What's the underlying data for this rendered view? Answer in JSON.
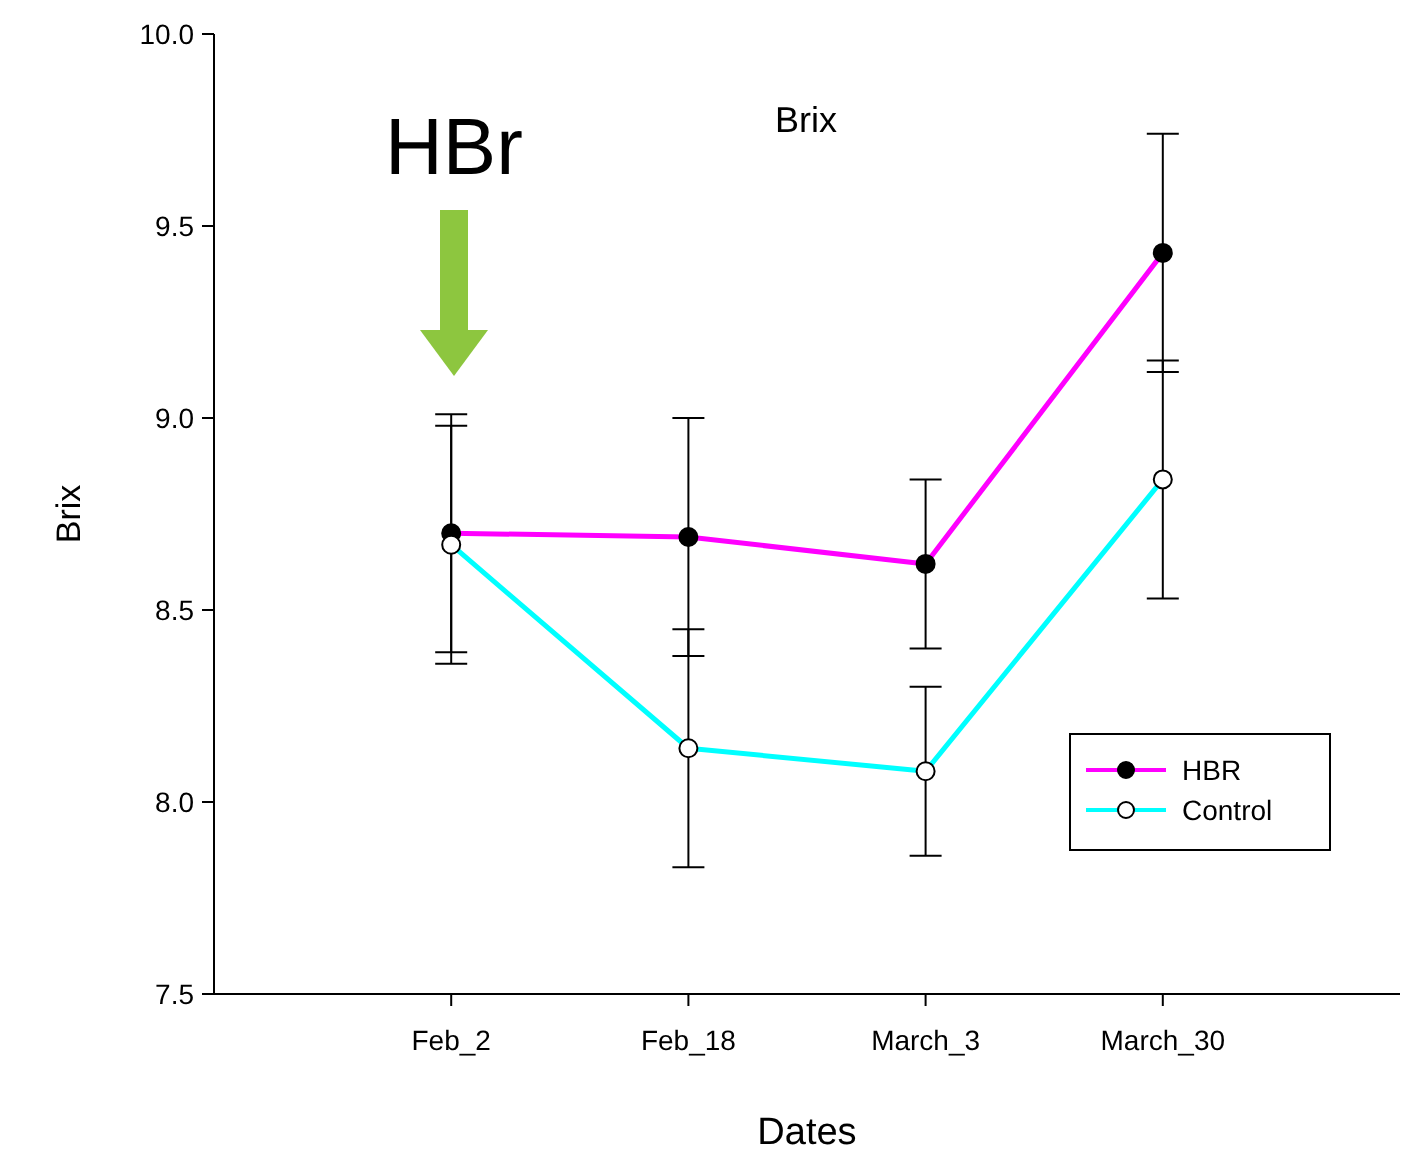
{
  "chart_data": {
    "type": "line",
    "title": "Brix",
    "xlabel": "Dates",
    "ylabel": "Brix",
    "categories": [
      "Feb_2",
      "Feb_18",
      "March_3",
      "March_30"
    ],
    "series": [
      {
        "name": "HBR",
        "color": "#ff00ff",
        "values": [
          8.7,
          8.69,
          8.62,
          9.43
        ],
        "errors": [
          0.31,
          0.31,
          0.22,
          0.31
        ]
      },
      {
        "name": "Control",
        "color": "#00ffff",
        "values": [
          8.67,
          8.14,
          8.08,
          8.84
        ],
        "errors": [
          0.31,
          0.31,
          0.22,
          0.31
        ]
      }
    ],
    "ylim": [
      7.5,
      10
    ],
    "yticks": [
      {
        "value": 7.5,
        "label": "7.5"
      },
      {
        "value": 8,
        "label": "8.0"
      },
      {
        "value": 8.5,
        "label": "8.5"
      },
      {
        "value": 9,
        "label": "9.0"
      },
      {
        "value": 9.5,
        "label": "9.5"
      },
      {
        "value": 10,
        "label": "10.0"
      }
    ],
    "annotations": [
      "HBr"
    ],
    "marker": "circle",
    "legend": "bottom right",
    "grid": false
  }
}
